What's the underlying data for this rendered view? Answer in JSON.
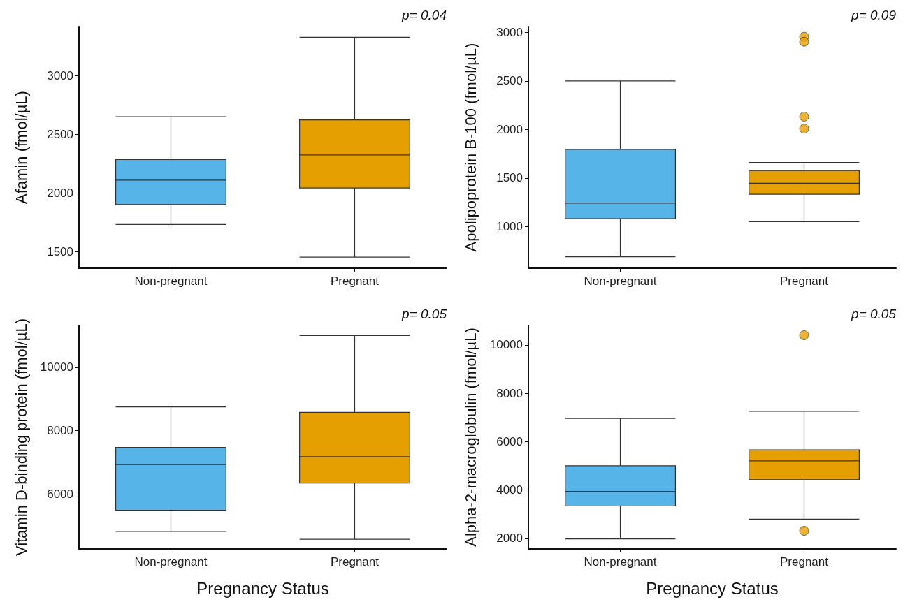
{
  "chart_data": [
    {
      "type": "box",
      "ylabel": "Afamin (fmol/µL)",
      "categories": [
        "Non-pregnant",
        "Pregnant"
      ],
      "colors": [
        "#56b4e9",
        "#e69f00"
      ],
      "boxes": [
        {
          "low": 1731,
          "q1": 1900,
          "median": 2109,
          "q3": 2284,
          "high": 2649
        },
        {
          "low": 1453,
          "q1": 2042,
          "median": 2323,
          "q3": 2622,
          "high": 3326
        }
      ],
      "ylim": [
        1358,
        3418
      ],
      "yticks": [
        1500,
        2000,
        2500,
        3000
      ],
      "grid": false,
      "annotations": [
        "p= 0.04"
      ]
    },
    {
      "type": "box",
      "ylabel": "Apolipoprotein B-100 (fmol/µL)",
      "categories": [
        "Non-pregnant",
        "Pregnant"
      ],
      "colors": [
        "#56b4e9",
        "#e69f00"
      ],
      "boxes": [
        {
          "low": 690,
          "q1": 1081,
          "median": 1241,
          "q3": 1795,
          "high": 2500
        },
        {
          "low": 1051,
          "q1": 1334,
          "median": 1446,
          "q3": 1578,
          "high": 1660,
          "outliers": [
            2955,
            2904,
            2133,
            2009
          ]
        }
      ],
      "ylim": [
        572,
        3060
      ],
      "yticks": [
        1000,
        1500,
        2000,
        2500,
        3000
      ],
      "grid": false,
      "annotations": [
        "p= 0.09"
      ]
    },
    {
      "type": "box",
      "xlabel": "Pregnancy Status",
      "ylabel": "Vitamin D-binding protein (fmol/µL)",
      "categories": [
        "Non-pregnant",
        "Pregnant"
      ],
      "colors": [
        "#56b4e9",
        "#e69f00"
      ],
      "boxes": [
        {
          "low": 4823,
          "q1": 5488,
          "median": 6934,
          "q3": 7471,
          "high": 8751
        },
        {
          "low": 4576,
          "q1": 6350,
          "median": 7181,
          "q3": 8580,
          "high": 11006
        }
      ],
      "ylim": [
        4269,
        11322
      ],
      "yticks": [
        6000,
        8000,
        10000
      ],
      "grid": false,
      "annotations": [
        "p= 0.05"
      ]
    },
    {
      "type": "box",
      "xlabel": "Pregnancy Status",
      "ylabel": "Alpha-2-macroglobulin (fmol/µL)",
      "categories": [
        "Non-pregnant",
        "Pregnant"
      ],
      "colors": [
        "#56b4e9",
        "#e69f00"
      ],
      "boxes": [
        {
          "low": 1978,
          "q1": 3339,
          "median": 3944,
          "q3": 5003,
          "high": 6958
        },
        {
          "low": 2796,
          "q1": 4426,
          "median": 5205,
          "q3": 5664,
          "high": 7260,
          "outliers": [
            10403,
            2314
          ]
        }
      ],
      "ylim": [
        1563,
        10807
      ],
      "yticks": [
        2000,
        4000,
        6000,
        8000,
        10000
      ],
      "grid": false,
      "annotations": [
        "p= 0.05"
      ]
    }
  ]
}
